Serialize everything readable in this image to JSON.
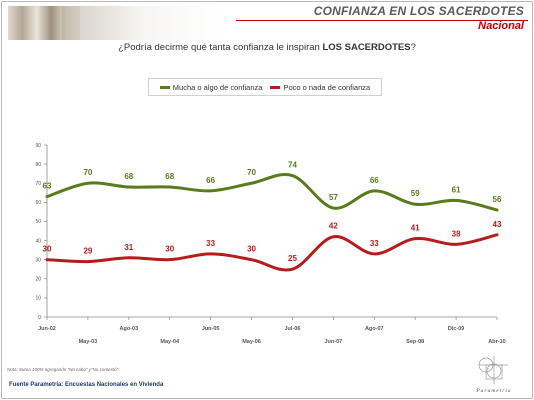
{
  "header": {
    "title": "CONFIANZA EN LOS SACERDOTES",
    "subtitle": "Nacional"
  },
  "question": {
    "prefix": "¿Podría decirme qué tanta confianza le inspiran ",
    "emphasis": "LOS SACERDOTES",
    "suffix": "?"
  },
  "colors": {
    "green": "#5a7a1e",
    "red": "#b71c1c",
    "axis": "#888888",
    "tick_text": "#555555"
  },
  "chart_data": {
    "type": "line",
    "ylim": [
      0,
      90
    ],
    "yticks": [
      0,
      10,
      20,
      30,
      40,
      50,
      60,
      70,
      80,
      90
    ],
    "grid": false,
    "legend_position": "top-center",
    "x_labels_top_row": [
      "Jun-02",
      "Ago-03",
      "Jun-05",
      "Jul-06",
      "Ago-07",
      "Dic-09"
    ],
    "x_labels_bottom_row": [
      "May-03",
      "May-04",
      "May-06",
      "Jun-07",
      "Sep-08",
      "Abr-10"
    ],
    "series": [
      {
        "name": "Mucha o algo de confianza",
        "color": "#5a7a1e",
        "points": [
          {
            "x": 0.0,
            "y": 63,
            "label": "63"
          },
          {
            "x": 1.0,
            "y": 70,
            "label": "70"
          },
          {
            "x": 2.0,
            "y": 68,
            "label": "68"
          },
          {
            "x": 3.0,
            "y": 68,
            "label": "68"
          },
          {
            "x": 4.0,
            "y": 66,
            "label": "66"
          },
          {
            "x": 5.0,
            "y": 70,
            "label": "70"
          },
          {
            "x": 6.0,
            "y": 74,
            "label": "74"
          },
          {
            "x": 7.0,
            "y": 57,
            "label": "57"
          },
          {
            "x": 8.0,
            "y": 66,
            "label": "66"
          },
          {
            "x": 9.0,
            "y": 59,
            "label": "59"
          },
          {
            "x": 10.0,
            "y": 61,
            "label": "61"
          },
          {
            "x": 11.0,
            "y": 56,
            "label": "56"
          }
        ]
      },
      {
        "name": "Poco o nada de confianza",
        "color": "#b71c1c",
        "points": [
          {
            "x": 0.0,
            "y": 30,
            "label": "30"
          },
          {
            "x": 1.0,
            "y": 29,
            "label": "29"
          },
          {
            "x": 2.0,
            "y": 31,
            "label": "31"
          },
          {
            "x": 3.0,
            "y": 30,
            "label": "30"
          },
          {
            "x": 4.0,
            "y": 33,
            "label": "33"
          },
          {
            "x": 5.0,
            "y": 30,
            "label": "30"
          },
          {
            "x": 6.0,
            "y": 25,
            "label": "25"
          },
          {
            "x": 7.0,
            "y": 42,
            "label": "42"
          },
          {
            "x": 8.0,
            "y": 33,
            "label": "33"
          },
          {
            "x": 9.0,
            "y": 41,
            "label": "41"
          },
          {
            "x": 10.0,
            "y": 38,
            "label": "38"
          },
          {
            "x": 11.0,
            "y": 43,
            "label": "43"
          }
        ]
      }
    ]
  },
  "footer": {
    "note": "Nota: Suma 100% agregando \"No sabe\" y\"No contestó\".",
    "source": "Fuente Parametría: Encuestas Nacionales en Vivienda",
    "brand": "Parametría"
  }
}
